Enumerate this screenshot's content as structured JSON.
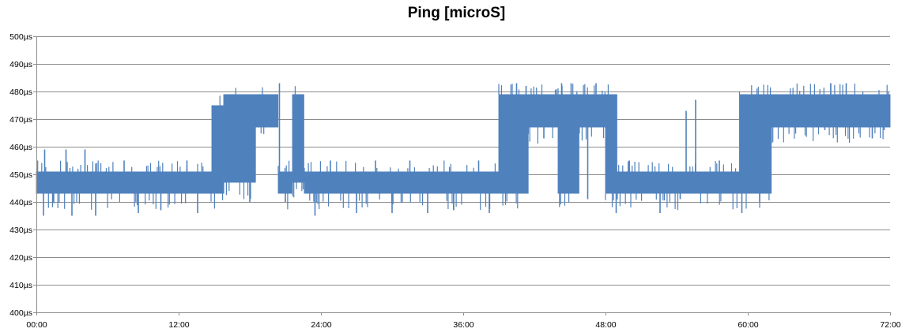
{
  "chart_data": {
    "type": "line",
    "title": "Ping [microS]",
    "xlabel": "",
    "ylabel": "",
    "x_unit": "hours",
    "xlim": [
      0,
      72
    ],
    "ylim": [
      400,
      500
    ],
    "grid": true,
    "legend": "none",
    "series_color": "#4F81BD",
    "y_ticks": [
      {
        "value": 400,
        "label": "400µs"
      },
      {
        "value": 410,
        "label": "410µs"
      },
      {
        "value": 420,
        "label": "420µs"
      },
      {
        "value": 430,
        "label": "430µs"
      },
      {
        "value": 440,
        "label": "440µs"
      },
      {
        "value": 450,
        "label": "450µs"
      },
      {
        "value": 460,
        "label": "460µs"
      },
      {
        "value": 470,
        "label": "470µs"
      },
      {
        "value": 480,
        "label": "480µs"
      },
      {
        "value": 490,
        "label": "490µs"
      },
      {
        "value": 500,
        "label": "500µs"
      }
    ],
    "x_ticks": [
      {
        "value": 0,
        "label": "00:00"
      },
      {
        "value": 12,
        "label": "12:00"
      },
      {
        "value": 24,
        "label": "24:00"
      },
      {
        "value": 36,
        "label": "36:00"
      },
      {
        "value": 48,
        "label": "48:00"
      },
      {
        "value": 60,
        "label": "60:00"
      },
      {
        "value": 72,
        "label": "72:00"
      }
    ],
    "series": [
      {
        "segments": [
          {
            "x_start": 0.0,
            "x_end": 14.8,
            "low": 443,
            "high": 451
          },
          {
            "x_start": 14.8,
            "x_end": 15.8,
            "low": 443,
            "high": 475
          },
          {
            "x_start": 15.8,
            "x_end": 18.5,
            "low": 447,
            "high": 479
          },
          {
            "x_start": 18.5,
            "x_end": 20.4,
            "low": 467,
            "high": 479
          },
          {
            "x_start": 20.4,
            "x_end": 21.6,
            "low": 443,
            "high": 451
          },
          {
            "x_start": 21.6,
            "x_end": 22.6,
            "low": 447,
            "high": 479
          },
          {
            "x_start": 22.6,
            "x_end": 39.0,
            "low": 443,
            "high": 451
          },
          {
            "x_start": 39.0,
            "x_end": 41.5,
            "low": 443,
            "high": 479
          },
          {
            "x_start": 41.5,
            "x_end": 44.0,
            "low": 467,
            "high": 479
          },
          {
            "x_start": 44.0,
            "x_end": 45.8,
            "low": 443,
            "high": 479
          },
          {
            "x_start": 45.8,
            "x_end": 48.0,
            "low": 467,
            "high": 479
          },
          {
            "x_start": 48.0,
            "x_end": 49.0,
            "low": 443,
            "high": 479
          },
          {
            "x_start": 49.0,
            "x_end": 59.3,
            "low": 443,
            "high": 451
          },
          {
            "x_start": 59.3,
            "x_end": 62.0,
            "low": 443,
            "high": 479
          },
          {
            "x_start": 62.0,
            "x_end": 72.0,
            "low": 467,
            "high": 479
          }
        ],
        "spikes": [
          {
            "x": 0.6,
            "y": 435
          },
          {
            "x": 0.7,
            "y": 459
          },
          {
            "x": 1.4,
            "y": 440
          },
          {
            "x": 2.5,
            "y": 459
          },
          {
            "x": 3.0,
            "y": 435
          },
          {
            "x": 4.1,
            "y": 459
          },
          {
            "x": 5.0,
            "y": 435
          },
          {
            "x": 7.4,
            "y": 455
          },
          {
            "x": 8.6,
            "y": 436
          },
          {
            "x": 10.5,
            "y": 437
          },
          {
            "x": 12.7,
            "y": 455
          },
          {
            "x": 13.6,
            "y": 436
          },
          {
            "x": 16.0,
            "y": 479
          },
          {
            "x": 18.0,
            "y": 440
          },
          {
            "x": 20.5,
            "y": 483
          },
          {
            "x": 21.0,
            "y": 440
          },
          {
            "x": 23.5,
            "y": 435
          },
          {
            "x": 24.8,
            "y": 455
          },
          {
            "x": 27.0,
            "y": 436
          },
          {
            "x": 28.6,
            "y": 455
          },
          {
            "x": 30.0,
            "y": 436
          },
          {
            "x": 31.5,
            "y": 455
          },
          {
            "x": 33.0,
            "y": 436
          },
          {
            "x": 35.2,
            "y": 437
          },
          {
            "x": 37.3,
            "y": 455
          },
          {
            "x": 38.2,
            "y": 436
          },
          {
            "x": 40.5,
            "y": 483
          },
          {
            "x": 41.3,
            "y": 482
          },
          {
            "x": 42.8,
            "y": 463
          },
          {
            "x": 44.3,
            "y": 483
          },
          {
            "x": 45.1,
            "y": 483
          },
          {
            "x": 46.5,
            "y": 441
          },
          {
            "x": 47.2,
            "y": 483
          },
          {
            "x": 48.9,
            "y": 436
          },
          {
            "x": 50.0,
            "y": 455
          },
          {
            "x": 52.6,
            "y": 436
          },
          {
            "x": 54.3,
            "y": 441
          },
          {
            "x": 54.8,
            "y": 473
          },
          {
            "x": 55.6,
            "y": 477
          },
          {
            "x": 57.6,
            "y": 455
          },
          {
            "x": 59.5,
            "y": 436
          },
          {
            "x": 61.0,
            "y": 440
          },
          {
            "x": 63.0,
            "y": 479
          },
          {
            "x": 66.5,
            "y": 466
          },
          {
            "x": 67.0,
            "y": 483
          },
          {
            "x": 68.3,
            "y": 483
          },
          {
            "x": 70.5,
            "y": 463
          },
          {
            "x": 71.5,
            "y": 466
          }
        ]
      }
    ]
  }
}
